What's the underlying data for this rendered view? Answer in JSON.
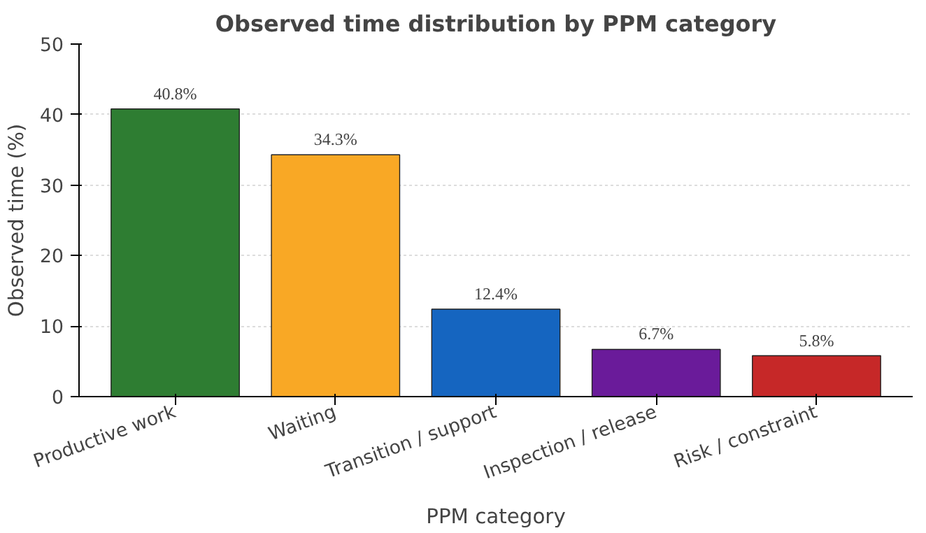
{
  "chart_data": {
    "type": "bar",
    "title": "Observed time distribution by PPM category",
    "xlabel": "PPM category",
    "ylabel": "Observed time (%)",
    "categories": [
      "Productive work",
      "Waiting",
      "Transition / support",
      "Inspection / release",
      "Risk / constraint"
    ],
    "values": [
      40.8,
      34.3,
      12.4,
      6.7,
      5.8
    ],
    "colors": [
      "#2e7d32",
      "#f9a825",
      "#1565c0",
      "#6a1b9a",
      "#c62828"
    ],
    "value_labels": [
      "40.8%",
      "34.3%",
      "12.4%",
      "6.7%",
      "5.8%"
    ],
    "ylim": [
      0,
      50
    ],
    "yticks": [
      0,
      10,
      20,
      30,
      40,
      50
    ],
    "grid": "y"
  }
}
